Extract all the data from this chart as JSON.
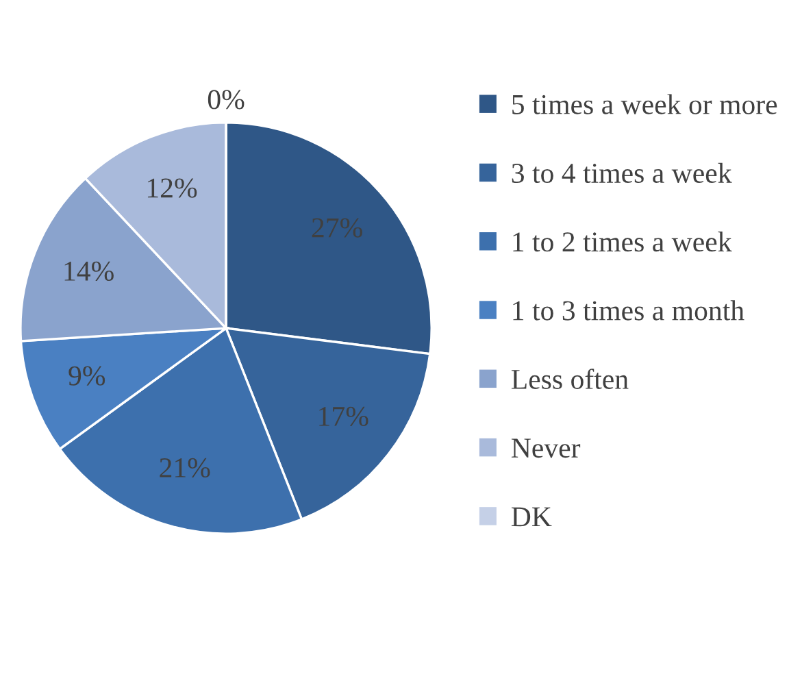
{
  "chart_data": {
    "type": "pie",
    "categories": [
      "5 times a week or more",
      "3 to 4 times a week",
      "1 to 2 times a week",
      "1 to 3 times a month",
      "Less often",
      "Never",
      "DK"
    ],
    "values": [
      27,
      17,
      21,
      9,
      14,
      12,
      0
    ],
    "colors": [
      "#2f5787",
      "#36649b",
      "#3d70ad",
      "#4a80c2",
      "#8aa3cd",
      "#a9badb",
      "#c5d0e7"
    ],
    "value_labels": [
      "27%",
      "17%",
      "21%",
      "9%",
      "14%",
      "12%",
      "0%"
    ],
    "legend": "right"
  }
}
